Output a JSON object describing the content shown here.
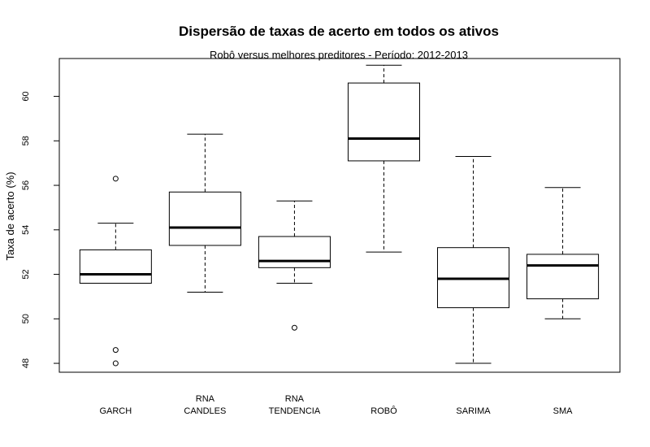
{
  "chart_data": {
    "type": "boxplot",
    "title": "Dispersão de taxas de acerto em todos os ativos",
    "subtitle": "Robô versus melhores preditores - Período: 2012-2013",
    "xlabel": "",
    "ylabel": "Taxa de acerto (%)",
    "ylim": [
      47.6,
      61.7
    ],
    "yticks": [
      48,
      50,
      52,
      54,
      56,
      58,
      60
    ],
    "grid": false,
    "categories": [
      [
        "GARCH"
      ],
      [
        "RNA",
        "CANDLES"
      ],
      [
        "RNA",
        "TENDENCIA"
      ],
      [
        "ROBÔ"
      ],
      [
        "SARIMA"
      ],
      [
        "SMA"
      ]
    ],
    "boxes": [
      {
        "whisker_low": 51.6,
        "q1": 51.6,
        "median": 52.0,
        "q3": 53.1,
        "whisker_high": 54.3,
        "outliers": [
          56.3,
          48.6,
          48.0
        ]
      },
      {
        "whisker_low": 51.2,
        "q1": 53.3,
        "median": 54.1,
        "q3": 55.7,
        "whisker_high": 58.3,
        "outliers": []
      },
      {
        "whisker_low": 51.6,
        "q1": 52.3,
        "median": 52.6,
        "q3": 53.7,
        "whisker_high": 55.3,
        "outliers": [
          49.6
        ]
      },
      {
        "whisker_low": 53.0,
        "q1": 57.1,
        "median": 58.1,
        "q3": 60.6,
        "whisker_high": 61.4,
        "outliers": []
      },
      {
        "whisker_low": 48.0,
        "q1": 50.5,
        "median": 51.8,
        "q3": 53.2,
        "whisker_high": 57.3,
        "outliers": []
      },
      {
        "whisker_low": 50.0,
        "q1": 50.9,
        "median": 52.4,
        "q3": 52.9,
        "whisker_high": 55.9,
        "outliers": []
      }
    ]
  }
}
